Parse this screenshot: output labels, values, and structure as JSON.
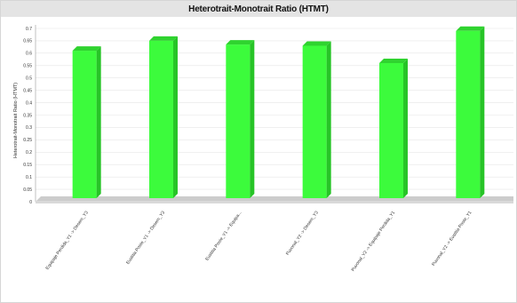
{
  "chart_data": {
    "type": "bar",
    "title": "Heterotrait-Monotrait Ratio (HTMT)",
    "ylabel": "Heterotrait-Monotrait Ratio (HTMT)",
    "xlabel": "",
    "ylim": [
      0,
      0.7
    ],
    "yticks": [
      "0",
      "0.05",
      "0.1",
      "0.15",
      "0.2",
      "0.25",
      "0.3",
      "0.35",
      "0.4",
      "0.45",
      "0.5",
      "0.55",
      "0.6",
      "0.65",
      "0.7"
    ],
    "categories": [
      "Equipaje Perdida_Y1 -> Desem_Y3",
      "Eustitia Poste_Y1 -> Desem_Y3",
      "Eustitia Poste_Y1 -> Equipa...",
      "Puvonal_Y2 -> Desem_Y3",
      "Puvonal_Y2 -> Equipaje Perdida_Y1",
      "Puvonal_Y2 -> Eustitia Poste_Y1"
    ],
    "values": [
      0.61,
      0.65,
      0.635,
      0.63,
      0.56,
      0.69
    ],
    "grid": true,
    "colors": {
      "bar_front": "#3cfb3c",
      "bar_side": "#27c427",
      "bar_top": "#2fd32f",
      "floor": "#cccccc",
      "title_band": "#e4e4e4",
      "grid": "#e6e6e6"
    }
  }
}
